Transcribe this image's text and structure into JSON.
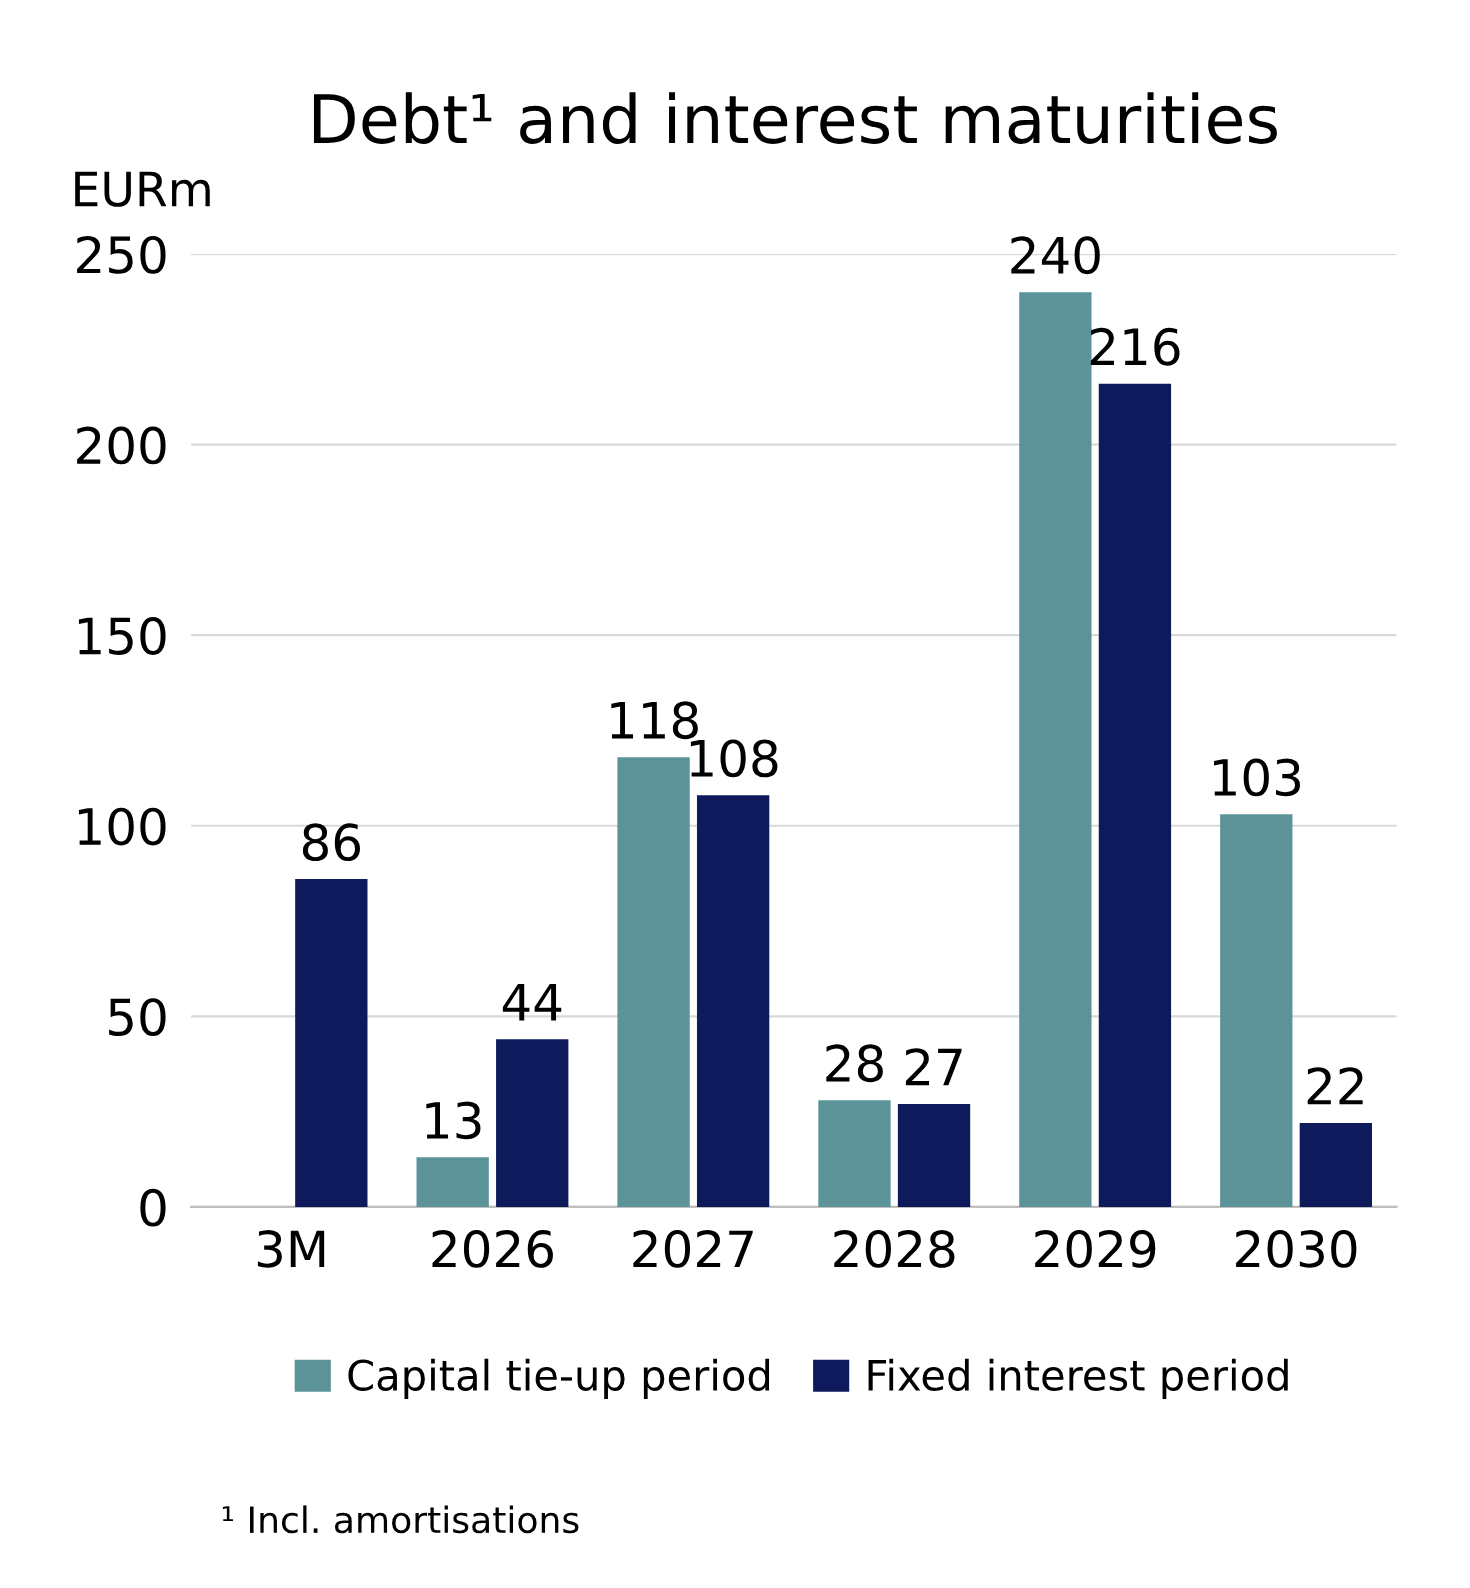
{
  "chart_data": {
    "type": "bar",
    "title": "Debt¹ and interest maturities",
    "ylabel": "EURm",
    "categories": [
      "3M",
      "2026",
      "2027",
      "2028",
      "2029",
      "2030"
    ],
    "series": [
      {
        "name": "Capital tie-up period",
        "color": "#5b9399",
        "values": [
          null,
          13,
          118,
          28,
          240,
          103
        ]
      },
      {
        "name": "Fixed interest period",
        "color": "#0e1a5c",
        "values": [
          86,
          44,
          108,
          27,
          216,
          22
        ]
      }
    ],
    "ylim": [
      0,
      250
    ],
    "yticks": [
      0,
      50,
      100,
      150,
      200,
      250
    ],
    "grid": "y",
    "legend": "bottom",
    "data_labels": true,
    "annotations": [
      "¹ Incl. amortisations"
    ]
  }
}
